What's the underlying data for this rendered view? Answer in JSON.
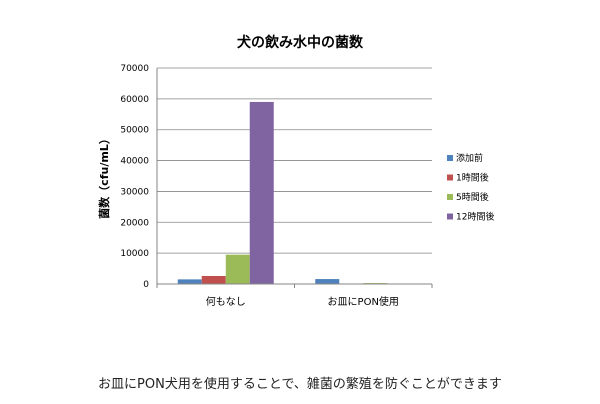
{
  "caption": "お皿にPON犬用を使用することで、雑菌の繁殖を防ぐことができます",
  "chart_data": {
    "type": "bar",
    "title": "犬の飲み水中の菌数",
    "xlabel": "",
    "ylabel": "菌数（cfu/mL）",
    "ylim": [
      0,
      70000
    ],
    "yticks": [
      0,
      10000,
      20000,
      30000,
      40000,
      50000,
      60000,
      70000
    ],
    "grid": true,
    "legend_position": "right",
    "categories": [
      "何もなし",
      "お皿にPON使用"
    ],
    "series": [
      {
        "name": "添加前",
        "color": "#4F81BD",
        "values": [
          1500,
          1600
        ]
      },
      {
        "name": "1時間後",
        "color": "#C0504D",
        "values": [
          2600,
          0
        ]
      },
      {
        "name": "5時間後",
        "color": "#9BBB59",
        "values": [
          9500,
          300
        ]
      },
      {
        "name": "12時間後",
        "color": "#8064A2",
        "values": [
          59000,
          0
        ]
      }
    ]
  }
}
